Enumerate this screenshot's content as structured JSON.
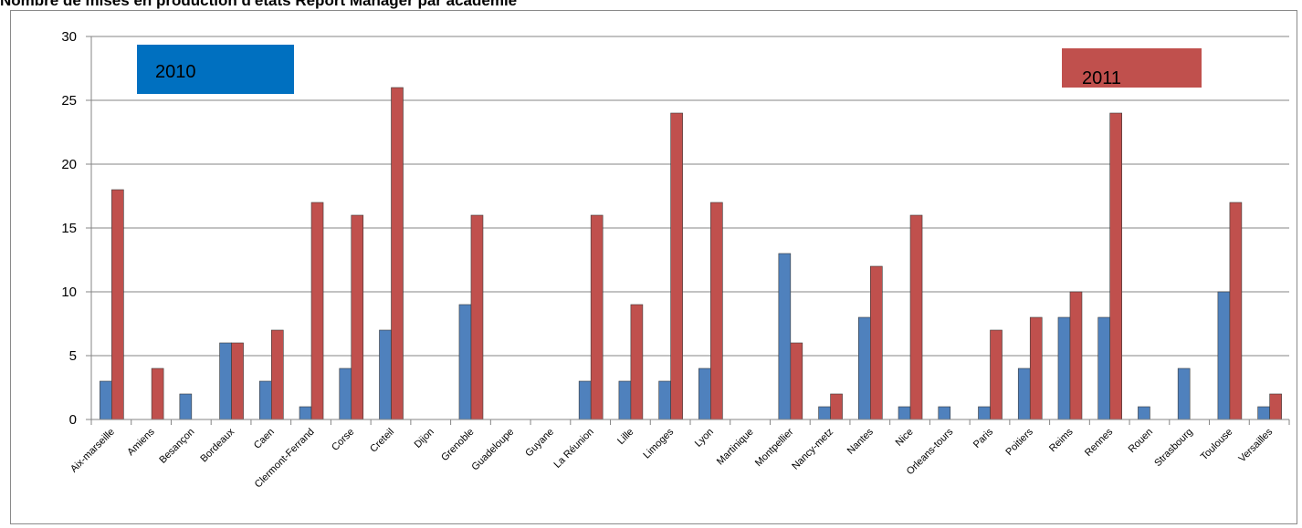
{
  "chart_data": {
    "type": "bar",
    "title": "Nombre de mises en production d'états Report Manager par académie",
    "ylim": [
      0,
      30
    ],
    "yticks": [
      0,
      5,
      10,
      15,
      20,
      25,
      30
    ],
    "grid": true,
    "categories": [
      "Aix-marseille",
      "Amiens",
      "Besançon",
      "Bordeaux",
      "Caen",
      "Clermont-Ferrand",
      "Corse",
      "Creteil",
      "Dijon",
      "Grenoble",
      "Guadeloupe",
      "Guyane",
      "La Réunion",
      "Lille",
      "Limoges",
      "Lyon",
      "Martinique",
      "Montpellier",
      "Nancy-metz",
      "Nantes",
      "Nice",
      "Orleans-tours",
      "Paris",
      "Poitiers",
      "Reims",
      "Rennes",
      "Rouen",
      "Strasbourg",
      "Toulouse",
      "Versailles"
    ],
    "series": [
      {
        "name": "2010",
        "color": "#4f81bd",
        "values": [
          3,
          0,
          2,
          6,
          3,
          1,
          4,
          7,
          0,
          9,
          0,
          0,
          3,
          3,
          3,
          4,
          0,
          13,
          1,
          8,
          1,
          1,
          1,
          4,
          8,
          8,
          1,
          4,
          10,
          1
        ]
      },
      {
        "name": "2011",
        "color": "#c0504d",
        "values": [
          18,
          4,
          0,
          6,
          7,
          17,
          16,
          26,
          0,
          16,
          0,
          0,
          16,
          9,
          24,
          17,
          0,
          6,
          2,
          12,
          16,
          0,
          7,
          8,
          10,
          24,
          0,
          0,
          17,
          2
        ]
      }
    ],
    "legend": [
      {
        "label": "2010",
        "color": "#0070c0",
        "position": "top-left"
      },
      {
        "label": "2011",
        "color": "#c0504d",
        "position": "top-right"
      }
    ]
  }
}
